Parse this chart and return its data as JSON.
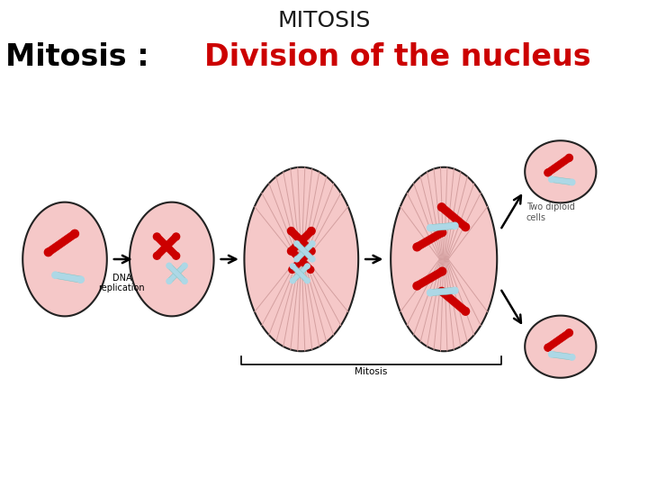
{
  "title": "MITOSIS",
  "title_fontsize": 18,
  "title_color": "#1a1a1a",
  "subtitle_black": "Mitosis : ",
  "subtitle_red": "Division of the nucleus",
  "subtitle_fontsize": 24,
  "subtitle_black_color": "#000000",
  "subtitle_red_color": "#cc0000",
  "background_color": "#ffffff",
  "cell_fill": "#f5c8c8",
  "cell_edge": "#222222",
  "chrom_red": "#cc0000",
  "chrom_cyan": "#add8e6",
  "label_dna": "DNA\nreplication",
  "label_mitosis": "Mitosis",
  "label_two_cells": "Two diploid\ncells",
  "spindle_color": "#d4a0a0",
  "xlim": [
    0,
    10
  ],
  "ylim": [
    0,
    7.5
  ]
}
